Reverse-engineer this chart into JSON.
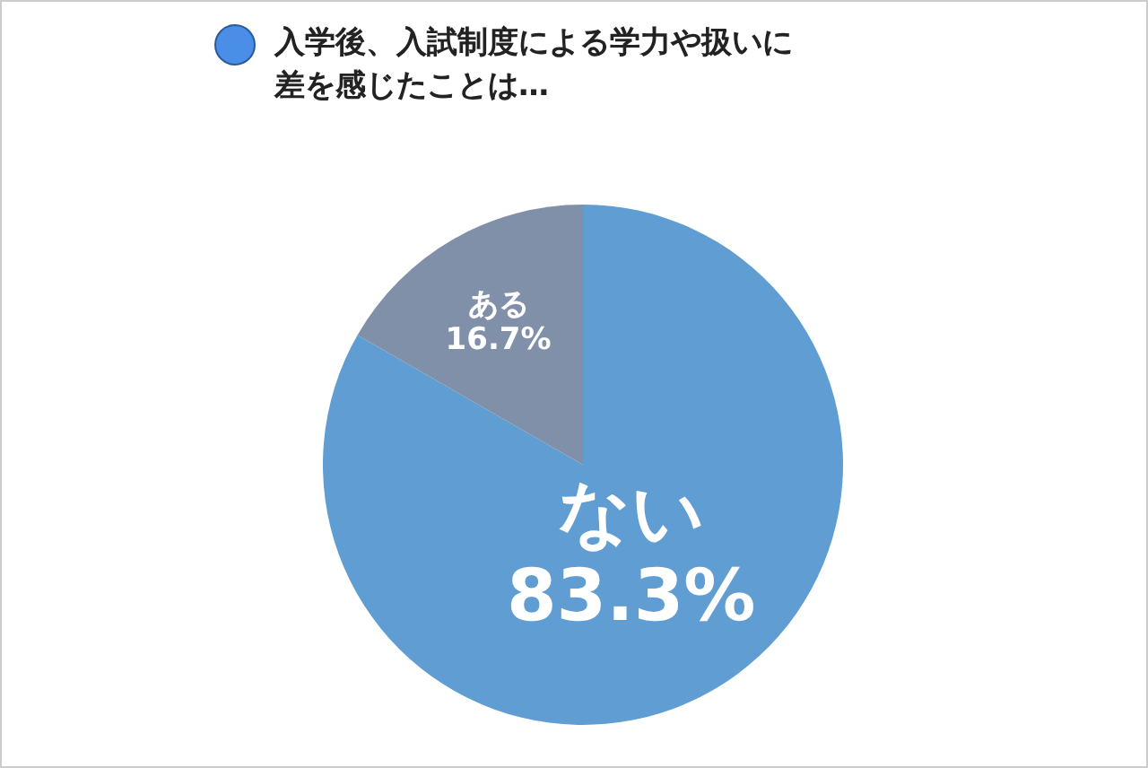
{
  "chart_data": {
    "type": "pie",
    "title": "入学後、入試制度による学力や扱いに差を感じたことは…",
    "categories": [
      "ない",
      "ある"
    ],
    "values": [
      83.3,
      16.7
    ],
    "colors": [
      "#5f9dd3",
      "#8090a8"
    ],
    "value_labels": [
      "83.3%",
      "16.7%"
    ]
  }
}
